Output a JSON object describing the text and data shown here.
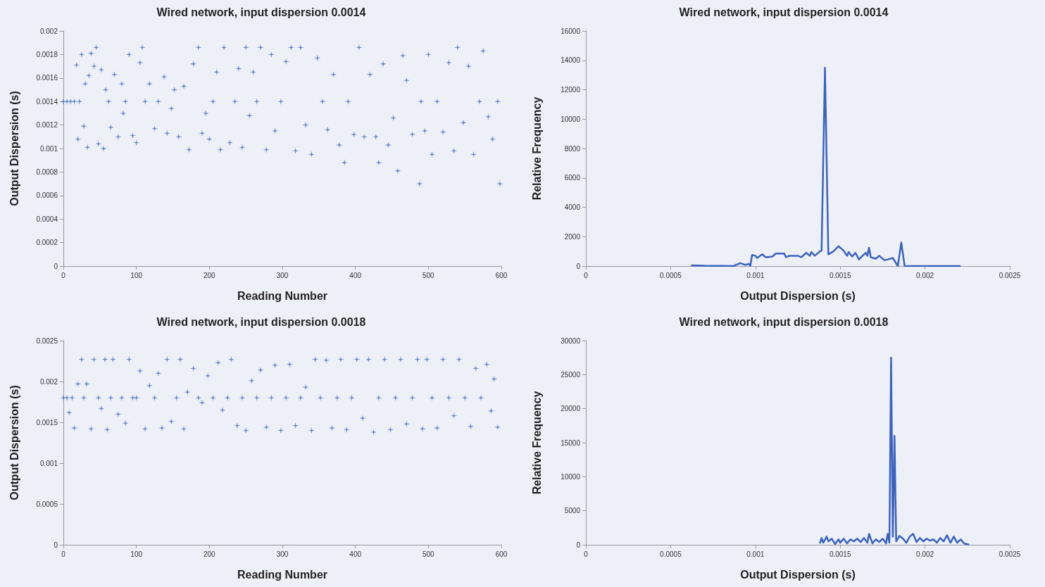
{
  "chart_data": [
    {
      "type": "scatter",
      "title": "Wired network, input dispersion 0.0014",
      "xlabel": "Reading Number",
      "ylabel": "Output Dispersion (s)",
      "marker": "cross",
      "grid": false,
      "xlim": [
        0,
        600
      ],
      "xticks": [
        0,
        100,
        200,
        300,
        400,
        500,
        600
      ],
      "ylim": [
        0,
        0.002
      ],
      "yticks": [
        0,
        0.0002,
        0.0004,
        0.0006,
        0.0008,
        0.001,
        0.0012,
        0.0014,
        0.0016,
        0.0018,
        0.002
      ],
      "x": [
        0,
        5,
        10,
        15,
        18,
        20,
        22,
        25,
        28,
        30,
        33,
        35,
        38,
        42,
        45,
        48,
        52,
        55,
        58,
        62,
        65,
        70,
        75,
        80,
        82,
        85,
        90,
        95,
        100,
        105,
        108,
        112,
        118,
        125,
        130,
        138,
        142,
        148,
        152,
        158,
        165,
        172,
        178,
        185,
        190,
        195,
        200,
        205,
        210,
        215,
        220,
        228,
        235,
        240,
        245,
        250,
        255,
        260,
        265,
        270,
        278,
        285,
        290,
        298,
        305,
        312,
        318,
        325,
        332,
        340,
        348,
        355,
        362,
        370,
        378,
        385,
        390,
        398,
        405,
        412,
        420,
        428,
        432,
        438,
        445,
        452,
        458,
        465,
        470,
        478,
        488,
        490,
        495,
        500,
        505,
        512,
        520,
        528,
        535,
        540,
        548,
        555,
        562,
        570,
        575,
        582,
        588,
        595,
        598
      ],
      "series": [
        {
          "color": "#4a74c4",
          "values": [
            0.0014,
            0.0014,
            0.0014,
            0.0014,
            0.00171,
            0.00108,
            0.0014,
            0.0018,
            0.00119,
            0.00155,
            0.00101,
            0.00162,
            0.00181,
            0.0017,
            0.00186,
            0.00104,
            0.00167,
            0.001,
            0.0015,
            0.0014,
            0.00118,
            0.00163,
            0.0011,
            0.00155,
            0.0013,
            0.0014,
            0.0018,
            0.00111,
            0.00105,
            0.00173,
            0.00186,
            0.0014,
            0.00155,
            0.00117,
            0.0014,
            0.00161,
            0.00113,
            0.00134,
            0.0015,
            0.0011,
            0.00153,
            0.00099,
            0.00172,
            0.00186,
            0.00113,
            0.0013,
            0.00108,
            0.0014,
            0.00165,
            0.00099,
            0.00186,
            0.00105,
            0.0014,
            0.00168,
            0.00101,
            0.00186,
            0.00128,
            0.00165,
            0.0014,
            0.00186,
            0.00099,
            0.0018,
            0.00115,
            0.0014,
            0.00174,
            0.00186,
            0.00098,
            0.00186,
            0.0012,
            0.00095,
            0.00177,
            0.0014,
            0.00116,
            0.00163,
            0.00103,
            0.00088,
            0.0014,
            0.00112,
            0.00186,
            0.0011,
            0.00163,
            0.0011,
            0.00088,
            0.00172,
            0.00103,
            0.00126,
            0.00081,
            0.00179,
            0.00158,
            0.00112,
            0.0007,
            0.0014,
            0.00115,
            0.0018,
            0.00095,
            0.0014,
            0.00114,
            0.00173,
            0.00098,
            0.00186,
            0.00122,
            0.0017,
            0.00095,
            0.0014,
            0.00183,
            0.00127,
            0.00108,
            0.0014,
            0.0007
          ]
        }
      ]
    },
    {
      "type": "line",
      "title": "Wired network, input dispersion 0.0014",
      "xlabel": "Output Dispersion (s)",
      "ylabel": "Relative Frequency",
      "marker": "none",
      "grid": false,
      "xlim": [
        0,
        0.0025
      ],
      "xticks": [
        0,
        0.0005,
        0.001,
        0.0015,
        0.002,
        0.0025
      ],
      "ylim": [
        0,
        16000
      ],
      "yticks": [
        0,
        2000,
        4000,
        6000,
        8000,
        10000,
        12000,
        14000,
        16000
      ],
      "x": [
        0.00062,
        0.0007,
        0.0008,
        0.00087,
        0.00091,
        0.00094,
        0.00096,
        0.00097,
        0.00098,
        0.001,
        0.00101,
        0.00104,
        0.00106,
        0.0011,
        0.00112,
        0.00117,
        0.00118,
        0.0012,
        0.00125,
        0.00127,
        0.0013,
        0.00132,
        0.00133,
        0.00135,
        0.00138,
        0.00139,
        0.00141,
        0.00143,
        0.00146,
        0.00149,
        0.00152,
        0.00154,
        0.00155,
        0.00157,
        0.00159,
        0.00161,
        0.00165,
        0.00166,
        0.00167,
        0.00168,
        0.00171,
        0.00173,
        0.00176,
        0.00178,
        0.00181,
        0.00184,
        0.00186,
        0.00188,
        0.002,
        0.00221
      ],
      "series": [
        {
          "color": "#3a62c0",
          "values": [
            50,
            20,
            10,
            0,
            200,
            80,
            150,
            20,
            750,
            700,
            550,
            800,
            600,
            650,
            850,
            850,
            600,
            700,
            700,
            600,
            900,
            700,
            950,
            700,
            1000,
            1050,
            13500,
            800,
            1000,
            1350,
            1050,
            700,
            950,
            650,
            900,
            450,
            900,
            700,
            1250,
            600,
            500,
            700,
            400,
            450,
            550,
            0,
            1600,
            0,
            0,
            0
          ]
        }
      ]
    },
    {
      "type": "scatter",
      "title": "Wired network, input dispersion 0.0018",
      "xlabel": "Reading Number",
      "ylabel": "Output Dispersion (s)",
      "marker": "cross",
      "grid": false,
      "xlim": [
        0,
        600
      ],
      "xticks": [
        0,
        100,
        200,
        300,
        400,
        500,
        600
      ],
      "ylim": [
        0,
        0.0025
      ],
      "yticks": [
        0,
        0.0005,
        0.001,
        0.0015,
        0.002,
        0.0025
      ],
      "x": [
        0,
        5,
        8,
        12,
        15,
        20,
        25,
        28,
        32,
        38,
        42,
        48,
        52,
        57,
        60,
        65,
        68,
        75,
        80,
        85,
        90,
        95,
        100,
        105,
        112,
        118,
        125,
        130,
        135,
        142,
        148,
        155,
        160,
        165,
        170,
        178,
        185,
        190,
        198,
        205,
        212,
        218,
        225,
        230,
        238,
        245,
        250,
        258,
        265,
        270,
        278,
        285,
        290,
        298,
        305,
        310,
        318,
        325,
        332,
        340,
        345,
        352,
        360,
        368,
        375,
        380,
        388,
        395,
        402,
        410,
        418,
        425,
        432,
        440,
        448,
        455,
        462,
        470,
        478,
        485,
        492,
        498,
        505,
        512,
        520,
        528,
        535,
        542,
        550,
        558,
        565,
        572,
        580,
        586,
        590,
        595
      ],
      "series": [
        {
          "color": "#4a74c4",
          "values": [
            0.0018,
            0.0018,
            0.00162,
            0.0018,
            0.00143,
            0.00197,
            0.00227,
            0.0018,
            0.00197,
            0.00142,
            0.00227,
            0.0018,
            0.00167,
            0.00227,
            0.00141,
            0.0018,
            0.00227,
            0.0016,
            0.0018,
            0.00149,
            0.00227,
            0.0018,
            0.0018,
            0.00213,
            0.00142,
            0.00195,
            0.0018,
            0.0021,
            0.00143,
            0.00227,
            0.00151,
            0.0018,
            0.00227,
            0.00142,
            0.00187,
            0.00216,
            0.0018,
            0.00174,
            0.00207,
            0.0018,
            0.00223,
            0.00165,
            0.0018,
            0.00227,
            0.00146,
            0.0018,
            0.0014,
            0.00201,
            0.0018,
            0.00214,
            0.00144,
            0.0018,
            0.0022,
            0.0014,
            0.0018,
            0.00221,
            0.00146,
            0.0018,
            0.00193,
            0.0014,
            0.00227,
            0.0018,
            0.00226,
            0.00143,
            0.0018,
            0.00227,
            0.00141,
            0.0018,
            0.00227,
            0.00155,
            0.00227,
            0.00138,
            0.0018,
            0.00227,
            0.00141,
            0.0018,
            0.00227,
            0.00148,
            0.0018,
            0.00227,
            0.00142,
            0.00227,
            0.0018,
            0.00143,
            0.00227,
            0.0018,
            0.00158,
            0.00227,
            0.0018,
            0.00145,
            0.00216,
            0.0018,
            0.00221,
            0.00164,
            0.00203,
            0.00144
          ]
        }
      ]
    },
    {
      "type": "line",
      "title": "Wired network, input dispersion 0.0018",
      "xlabel": "Output Dispersion (s)",
      "ylabel": "Relative Frequency",
      "marker": "none",
      "grid": false,
      "xlim": [
        0,
        0.0025
      ],
      "xticks": [
        0,
        0.0005,
        0.001,
        0.0015,
        0.002,
        0.0025
      ],
      "ylim": [
        0,
        30000
      ],
      "yticks": [
        0,
        5000,
        10000,
        15000,
        20000,
        25000,
        30000
      ],
      "x": [
        0.00138,
        0.00139,
        0.0014,
        0.00142,
        0.00143,
        0.00145,
        0.00147,
        0.00149,
        0.0015,
        0.00152,
        0.00154,
        0.00156,
        0.00158,
        0.0016,
        0.00162,
        0.00164,
        0.00166,
        0.00167,
        0.00169,
        0.00171,
        0.00173,
        0.00175,
        0.00177,
        0.00178,
        0.00179,
        0.0018,
        0.00181,
        0.00182,
        0.00183,
        0.00185,
        0.00187,
        0.00189,
        0.00191,
        0.00193,
        0.00195,
        0.00197,
        0.00199,
        0.00201,
        0.00203,
        0.00205,
        0.00207,
        0.00209,
        0.00211,
        0.00213,
        0.00215,
        0.00217,
        0.00219,
        0.00221,
        0.00223,
        0.00226
      ],
      "series": [
        {
          "color": "#3a62c0",
          "values": [
            200,
            1000,
            300,
            1200,
            500,
            900,
            100,
            800,
            300,
            900,
            200,
            800,
            500,
            900,
            400,
            1000,
            300,
            1600,
            200,
            800,
            400,
            900,
            200,
            1600,
            300,
            27500,
            1200,
            16000,
            500,
            1300,
            900,
            300,
            1200,
            1600,
            400,
            1000,
            500,
            900,
            600,
            800,
            300,
            1000,
            500,
            1400,
            300,
            1200,
            300,
            800,
            200,
            0
          ]
        }
      ]
    }
  ]
}
